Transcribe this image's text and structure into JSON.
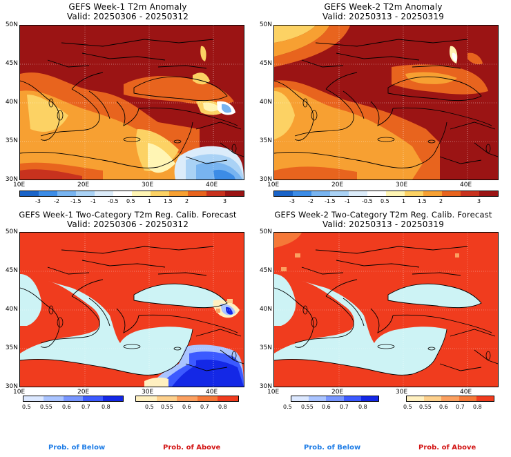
{
  "panels": [
    {
      "id": "w1-anom",
      "title1": "GEFS Week-1 T2m Anomaly",
      "title2": "Valid: 20250306 - 20250312",
      "lat_labels": [
        "50N",
        "45N",
        "40N",
        "35N",
        "30N"
      ],
      "lon_labels": [
        "10E",
        "20E",
        "30E",
        "40E"
      ],
      "legend_ticks": [
        "-3",
        "-2",
        "-1.5",
        "-1",
        "-0.5",
        "0.5",
        "1",
        "1.5",
        "2",
        "3"
      ]
    },
    {
      "id": "w2-anom",
      "title1": "GEFS Week-2 T2m Anomaly",
      "title2": "Valid: 20250313 - 20250319",
      "lat_labels": [
        "50N",
        "45N",
        "40N",
        "35N",
        "30N"
      ],
      "lon_labels": [
        "10E",
        "20E",
        "30E",
        "40E"
      ],
      "legend_ticks": [
        "-3",
        "-2",
        "-1.5",
        "-1",
        "-0.5",
        "0.5",
        "1",
        "1.5",
        "2",
        "3"
      ]
    },
    {
      "id": "w1-prob",
      "title1": "GEFS Week-1 Two-Category T2m Reg. Calib. Forecast",
      "title2": "Valid: 20250306 - 20250312",
      "lat_labels": [
        "50N",
        "45N",
        "40N",
        "35N",
        "30N"
      ],
      "lon_labels": [
        "10E",
        "20E",
        "30E",
        "40E"
      ],
      "below_ticks": [
        "0.5",
        "0.55",
        "0.6",
        "0.7",
        "0.8"
      ],
      "above_ticks": [
        "0.5",
        "0.55",
        "0.6",
        "0.7",
        "0.8"
      ],
      "below_label": "Prob. of Below",
      "above_label": "Prob. of Above"
    },
    {
      "id": "w2-prob",
      "title1": "GEFS Week-2 Two-Category T2m Reg. Calib. Forecast",
      "title2": "Valid: 20250313 - 20250319",
      "lat_labels": [
        "50N",
        "45N",
        "40N",
        "35N",
        "30N"
      ],
      "lon_labels": [
        "10E",
        "20E",
        "30E",
        "40E"
      ],
      "below_ticks": [
        "0.5",
        "0.55",
        "0.6",
        "0.7",
        "0.8"
      ],
      "above_ticks": [
        "0.5",
        "0.55",
        "0.6",
        "0.7",
        "0.8"
      ],
      "below_label": "Prob. of Below",
      "above_label": "Prob. of Above"
    }
  ],
  "colors": {
    "anomaly_scale": [
      "#1a64c8",
      "#3c8ce6",
      "#78b4f0",
      "#aad2f5",
      "#dcecfa",
      "#ffffff",
      "#fff5b4",
      "#fcd264",
      "#f7a032",
      "#e8641e",
      "#c8321e",
      "#9b1414"
    ],
    "below_scale": [
      "#dce8ff",
      "#aac4ff",
      "#7896ff",
      "#3c5aff",
      "#1428e6"
    ],
    "above_scale": [
      "#fff0c0",
      "#fdd08c",
      "#fba060",
      "#f57838",
      "#f03c1e"
    ],
    "sea_neutral": "#cdf3f5",
    "prob_below_text": "#1f7de6",
    "prob_above_text": "#d21414"
  }
}
